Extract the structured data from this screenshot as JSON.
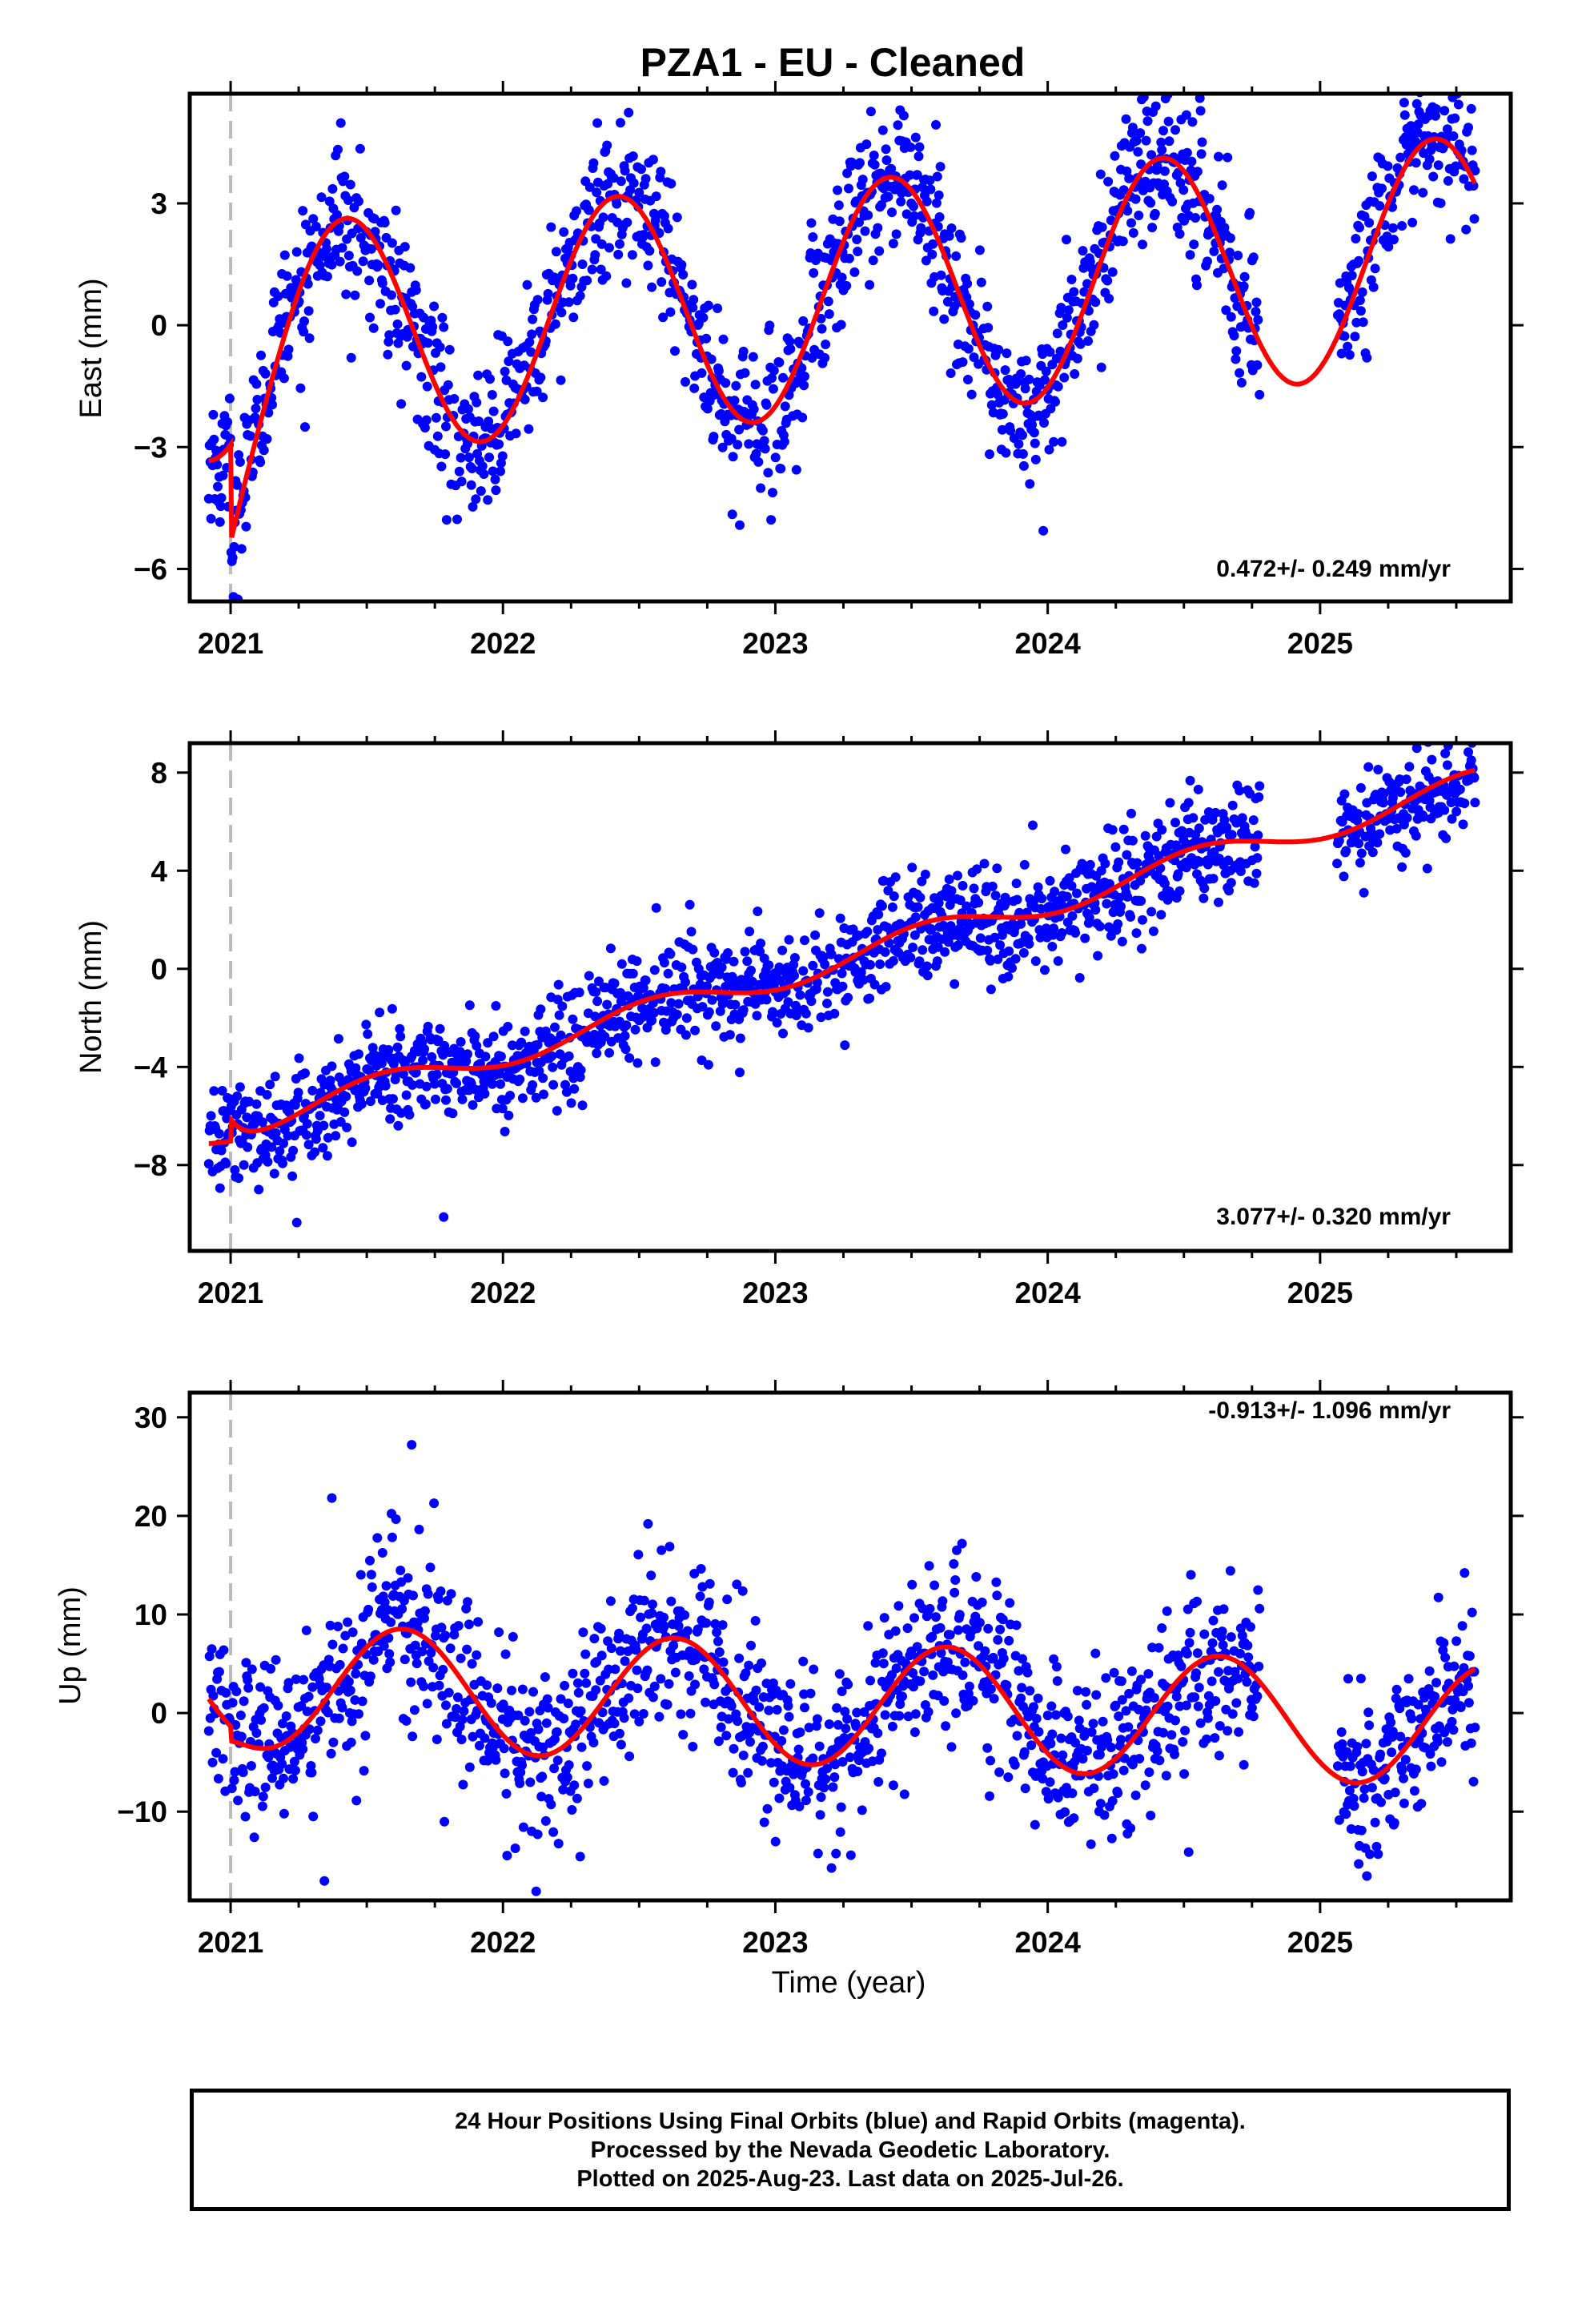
{
  "title": "PZA1  - EU - Cleaned",
  "xlabel": "Time (year)",
  "colors": {
    "points": "#0000ff",
    "model": "#ff0000",
    "marker_line": "#bbbbbb",
    "frame": "#000000"
  },
  "caption": {
    "line1": "24 Hour Positions Using Final Orbits (blue) and Rapid Orbits (magenta).",
    "line2": "Processed by the Nevada Geodetic Laboratory.",
    "line3": "Plotted on 2025-Aug-23. Last data on 2025-Jul-26."
  },
  "chart_data": [
    {
      "type": "scatter",
      "ylabel": "East (mm)",
      "rate_text": "0.472+/- 0.249 mm/yr",
      "xlim": [
        2020.85,
        2025.7
      ],
      "ylim": [
        -6.8,
        5.7
      ],
      "xticks": [
        2021,
        2022,
        2023,
        2024,
        2025
      ],
      "yticks": [
        -6,
        -3,
        0,
        3
      ],
      "ytick_labels": [
        "−6",
        "−3",
        "0",
        "3"
      ],
      "equipment_change": 2021.0,
      "data_start": 2020.92,
      "data_end": 2025.57,
      "gaps": [
        [
          2024.78,
          2025.06
        ]
      ],
      "noise_mm": 0.9,
      "model": {
        "rate": 0.472,
        "offset": -0.4,
        "ref_year": 2021.0,
        "annual_amp": 2.9,
        "annual_phase_year": 2021.42,
        "step_at": 2021.0,
        "step_mm": -2.4,
        "step_decay_years": 0.12
      }
    },
    {
      "type": "scatter",
      "ylabel": "North (mm)",
      "rate_text": "3.077+/- 0.320 mm/yr",
      "xlim": [
        2020.85,
        2025.7
      ],
      "ylim": [
        -11.5,
        9.2
      ],
      "xticks": [
        2021,
        2022,
        2023,
        2024,
        2025
      ],
      "yticks": [
        -8,
        -4,
        0,
        4,
        8
      ],
      "ytick_labels": [
        "−8",
        "−4",
        "0",
        "4",
        "8"
      ],
      "equipment_change": 2021.0,
      "data_start": 2020.92,
      "data_end": 2025.57,
      "gaps": [
        [
          2024.78,
          2025.06
        ]
      ],
      "noise_mm": 1.0,
      "model": {
        "rate": 3.077,
        "offset": -6.5,
        "ref_year": 2021.0,
        "annual_amp": 0.55,
        "annual_phase_year": 2021.55,
        "step_at": 2021.0,
        "step_mm": 0.9,
        "step_decay_years": 0.05
      }
    },
    {
      "type": "scatter",
      "ylabel": "Up (mm)",
      "rate_text": "-0.913+/- 1.096 mm/yr",
      "xlim": [
        2020.85,
        2025.7
      ],
      "ylim": [
        -19,
        32.5
      ],
      "xticks": [
        2021,
        2022,
        2023,
        2024,
        2025
      ],
      "yticks": [
        -10,
        0,
        10,
        20,
        30
      ],
      "ytick_labels": [
        "−10",
        "0",
        "10",
        "20",
        "30"
      ],
      "equipment_change": 2021.0,
      "data_start": 2020.92,
      "data_end": 2025.57,
      "gaps": [
        [
          2024.78,
          2025.06
        ]
      ],
      "noise_mm": 4.2,
      "model": {
        "rate": -0.913,
        "offset": 2.9,
        "ref_year": 2021.0,
        "annual_amp": 6.2,
        "annual_phase_year": 2021.63,
        "step_at": 2021.0,
        "step_mm": -1.5,
        "step_decay_years": 0.06
      }
    }
  ]
}
